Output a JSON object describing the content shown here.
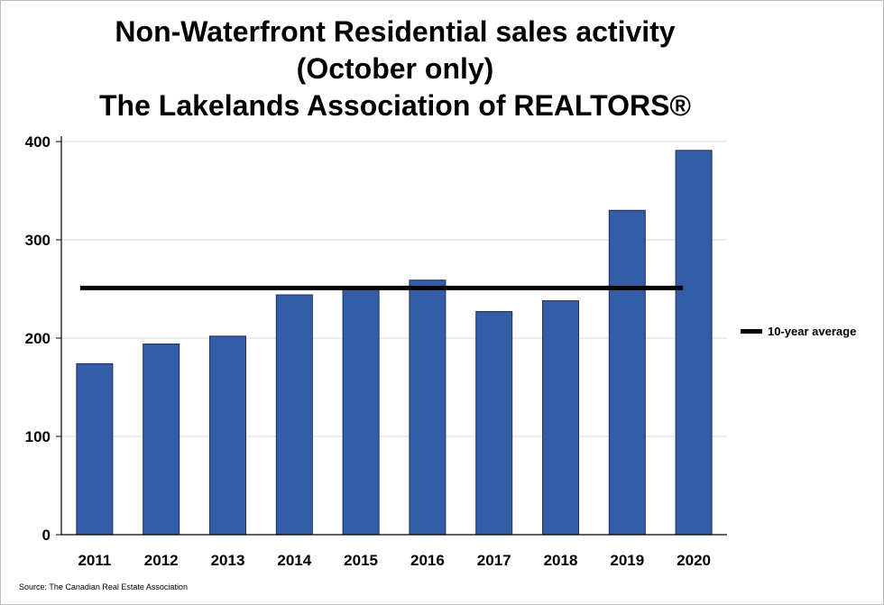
{
  "chart_data": {
    "type": "bar",
    "title_lines": [
      "Non-Waterfront Residential sales activity",
      "(October only)",
      "The Lakelands Association of REALTORS®"
    ],
    "categories": [
      "2011",
      "2012",
      "2013",
      "2014",
      "2015",
      "2016",
      "2017",
      "2018",
      "2019",
      "2020"
    ],
    "values": [
      174,
      194,
      202,
      244,
      251,
      259,
      227,
      238,
      330,
      391
    ],
    "yticks": [
      0,
      100,
      200,
      300,
      400
    ],
    "ylim": [
      0,
      400
    ],
    "bar_color": "#345da8",
    "average": {
      "label": "10-year average",
      "value": 251,
      "color": "#000000"
    },
    "grid": true,
    "legend_position": "right"
  },
  "source": "Source: The Canadian Real Estate Association"
}
